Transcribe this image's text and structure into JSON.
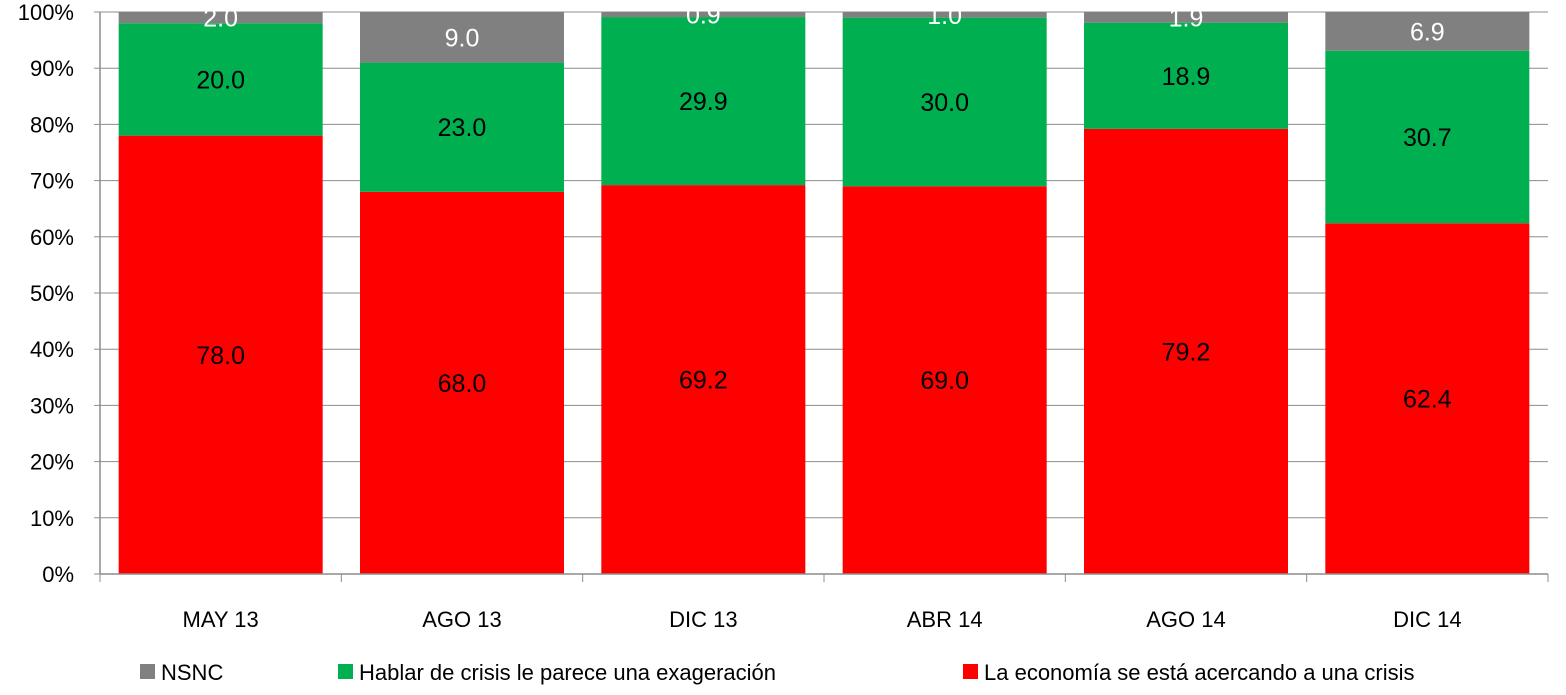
{
  "chart_data": {
    "type": "bar",
    "stacked": "percent",
    "categories": [
      "MAY 13",
      "AGO 13",
      "DIC 13",
      "ABR 14",
      "AGO 14",
      "DIC 14"
    ],
    "series": [
      {
        "name": "La economía se está acercando a una crisis",
        "color": "#ff0000",
        "label_color": "#000000",
        "values": [
          78.0,
          68.0,
          69.2,
          69.0,
          79.2,
          62.4
        ]
      },
      {
        "name": "Hablar de crisis le parece una exageración",
        "color": "#00b050",
        "label_color": "#000000",
        "values": [
          20.0,
          23.0,
          29.9,
          30.0,
          18.9,
          30.7
        ]
      },
      {
        "name": "NSNC",
        "color": "#808080",
        "label_color": "#ffffff",
        "values": [
          2.0,
          9.0,
          0.9,
          1.0,
          1.9,
          6.9
        ]
      }
    ],
    "data_labels": [
      [
        "78.0",
        "68.0",
        "69.2",
        "69.0",
        "79.2",
        "62.4"
      ],
      [
        "20.0",
        "23.0",
        "29.9",
        "30.0",
        "18.9",
        "30.7"
      ],
      [
        "2.0",
        "9.0",
        "0.9",
        "1.0",
        "1.9",
        "6.9"
      ]
    ],
    "y_ticks": [
      "0%",
      "10%",
      "20%",
      "30%",
      "40%",
      "50%",
      "60%",
      "70%",
      "80%",
      "90%",
      "100%"
    ],
    "ylim": [
      0,
      100
    ],
    "grid": true,
    "legend_order": [
      "NSNC",
      "Hablar de crisis le parece una exageración",
      "La economía se está acercando a una crisis"
    ],
    "legend_position": "bottom",
    "title": "",
    "xlabel": "",
    "ylabel": ""
  }
}
